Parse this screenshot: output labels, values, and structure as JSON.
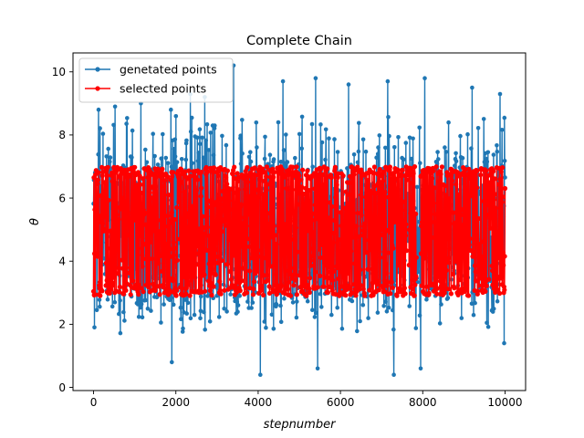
{
  "chart_data": {
    "type": "line",
    "title": "Complete Chain",
    "xlabel": "stepnumber",
    "ylabel": "θ",
    "xlim": [
      -500,
      10500
    ],
    "ylim": [
      -0.1,
      10.6
    ],
    "xticks": [
      0,
      2000,
      4000,
      6000,
      8000,
      10000
    ],
    "yticks": [
      0,
      2,
      4,
      6,
      8,
      10
    ],
    "grid": false,
    "legend_position": "top-left",
    "series": [
      {
        "name": "genetated points",
        "color": "#1f77b4",
        "marker": "circle",
        "n_points": 10000,
        "x_range": [
          0,
          10000
        ],
        "typical_range": [
          2.0,
          8.0
        ],
        "extremes": {
          "min": 0.4,
          "max": 10.2
        },
        "sample_points": [
          {
            "x": 20,
            "y": 1.9
          },
          {
            "x": 120,
            "y": 8.8
          },
          {
            "x": 520,
            "y": 8.9
          },
          {
            "x": 1150,
            "y": 9.0
          },
          {
            "x": 1880,
            "y": 8.8
          },
          {
            "x": 1900,
            "y": 0.8
          },
          {
            "x": 2350,
            "y": 9.3
          },
          {
            "x": 2700,
            "y": 9.2
          },
          {
            "x": 3400,
            "y": 10.2
          },
          {
            "x": 4050,
            "y": 0.4
          },
          {
            "x": 4600,
            "y": 9.7
          },
          {
            "x": 5400,
            "y": 9.8
          },
          {
            "x": 5450,
            "y": 0.6
          },
          {
            "x": 6200,
            "y": 9.6
          },
          {
            "x": 7150,
            "y": 9.7
          },
          {
            "x": 7300,
            "y": 0.4
          },
          {
            "x": 7950,
            "y": 0.6
          },
          {
            "x": 8050,
            "y": 9.8
          },
          {
            "x": 9200,
            "y": 9.5
          },
          {
            "x": 9880,
            "y": 9.3
          },
          {
            "x": 9980,
            "y": 1.4
          }
        ]
      },
      {
        "name": "selected points",
        "color": "#ff0000",
        "marker": "circle",
        "n_points": 6800,
        "x_range": [
          0,
          10000
        ],
        "y_range": [
          2.9,
          7.0
        ],
        "gap": {
          "x_from": 7850,
          "x_to": 7950
        }
      }
    ]
  }
}
